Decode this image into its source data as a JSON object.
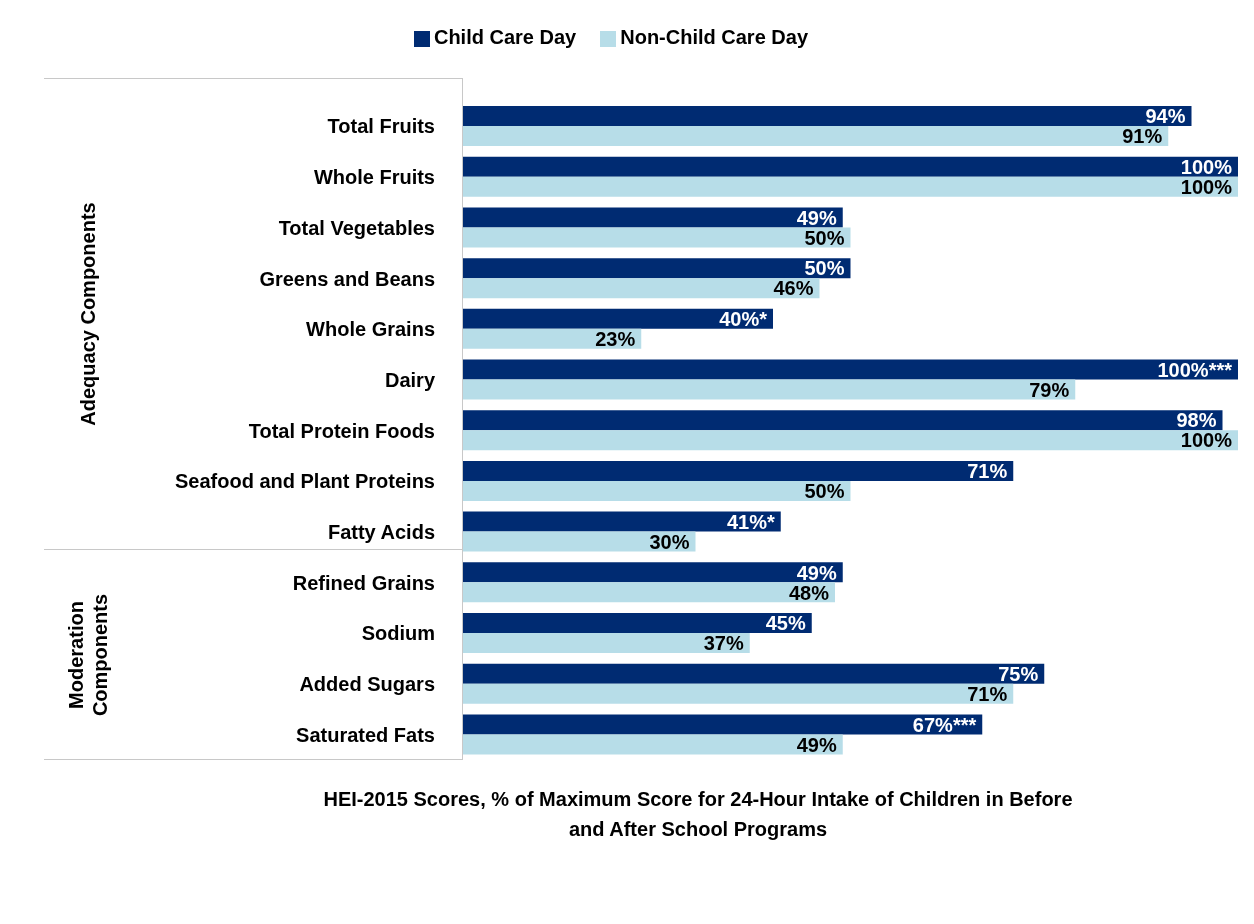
{
  "chart_data": {
    "type": "bar",
    "orientation": "horizontal",
    "xlabel": "HEI-2015 Scores, % of Maximum Score for 24-Hour Intake of Children in Before and After School Programs",
    "categories": [
      "Total Fruits",
      "Whole Fruits",
      "Total Vegetables",
      "Greens and Beans",
      "Whole Grains",
      "Dairy",
      "Total Protein Foods",
      "Seafood and Plant Proteins",
      "Fatty Acids",
      "Refined Grains",
      "Sodium",
      "Added Sugars",
      "Saturated Fats"
    ],
    "series": [
      {
        "name": "Child Care Day",
        "color": "#002b72",
        "values": [
          94,
          100,
          49,
          50,
          40,
          100,
          98,
          71,
          41,
          49,
          45,
          75,
          67
        ],
        "value_labels": [
          "94%",
          "100%",
          "49%",
          "50%",
          "40%*",
          "100%***",
          "98%",
          "71%",
          "41%*",
          "49%",
          "45%",
          "75%",
          "67%***"
        ]
      },
      {
        "name": "Non-Child Care Day",
        "color": "#b7dde8",
        "values": [
          91,
          100,
          50,
          46,
          23,
          79,
          100,
          50,
          30,
          48,
          37,
          71,
          49
        ],
        "value_labels": [
          "91%",
          "100%",
          "50%",
          "46%",
          "23%",
          "79%",
          "100%",
          "50%",
          "30%",
          "48%",
          "37%",
          "71%",
          "49%"
        ]
      }
    ],
    "annotations": [
      "Adequacy Components",
      "Moderation Components"
    ],
    "xlim": [
      0,
      100
    ],
    "tick_labels": "y",
    "legend": "top"
  }
}
